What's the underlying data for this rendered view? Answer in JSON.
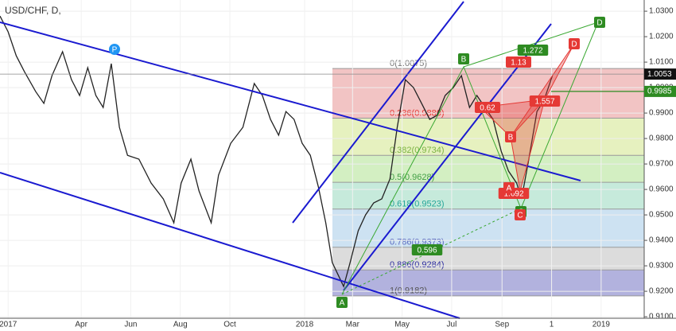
{
  "chart_data": {
    "type": "line",
    "title": "USD/CHF, D,",
    "x": [
      -10,
      0,
      10,
      20,
      34,
      44,
      54,
      67,
      78,
      88,
      98,
      108,
      117,
      127,
      137,
      147,
      161,
      176,
      191,
      204,
      213,
      225,
      235,
      250,
      259,
      274,
      289,
      303,
      313,
      323,
      333,
      342,
      352,
      362,
      372,
      382,
      391,
      399,
      406,
      413,
      421,
      431,
      440,
      450,
      460,
      470,
      479,
      489,
      499,
      509,
      519,
      528,
      538,
      548,
      558,
      568,
      577,
      587,
      597,
      607,
      616,
      626,
      632,
      641,
      651,
      660,
      670
    ],
    "series": [
      {
        "name": "USD/CHF",
        "color": "#222222",
        "values": [
          1.0281,
          1.0219,
          1.0125,
          1.0063,
          0.9984,
          0.9938,
          1.0047,
          1.0141,
          1.0031,
          0.9969,
          1.0078,
          0.9969,
          0.9922,
          1.0094,
          0.9844,
          0.9734,
          0.9719,
          0.9625,
          0.9563,
          0.9469,
          0.9625,
          0.9719,
          0.9594,
          0.9469,
          0.9656,
          0.9781,
          0.9844,
          1.0016,
          0.9969,
          0.9875,
          0.9813,
          0.9906,
          0.9875,
          0.9781,
          0.9734,
          0.9609,
          0.9469,
          0.9313,
          0.9266,
          0.9219,
          0.9313,
          0.9438,
          0.95,
          0.9547,
          0.9563,
          0.9641,
          0.9844,
          1.0031,
          1.0,
          0.9938,
          0.9875,
          0.9891,
          0.9969,
          1.0,
          1.0047,
          0.9922,
          0.9969,
          0.9922,
          0.9875,
          0.975,
          0.9672,
          0.9625,
          0.9563,
          0.9719,
          0.9906,
          0.9953,
          1.0047
        ]
      }
    ],
    "xlim": [
      -10,
      783
    ],
    "xticks": [
      {
        "value": 0,
        "label": "2017"
      },
      {
        "value": 90,
        "label": "Apr"
      },
      {
        "value": 151,
        "label": "Jun"
      },
      {
        "value": 212,
        "label": "Aug"
      },
      {
        "value": 273,
        "label": "Oct"
      },
      {
        "value": 365,
        "label": "2018"
      },
      {
        "value": 424,
        "label": "Mar"
      },
      {
        "value": 485,
        "label": "May"
      },
      {
        "value": 546,
        "label": "Jul"
      },
      {
        "value": 608,
        "label": "Sep"
      },
      {
        "value": 669,
        "label": "1"
      },
      {
        "value": 730,
        "label": "2019"
      }
    ],
    "ylim": [
      0.9094,
      1.0344
    ],
    "yticks": [
      {
        "value": 1.03,
        "label": "1.0300"
      },
      {
        "value": 1.02,
        "label": "1.0200"
      },
      {
        "value": 1.01,
        "label": "1.0100"
      },
      {
        "value": 1.0,
        "label": "1.0000"
      },
      {
        "value": 0.99,
        "label": "0.9900"
      },
      {
        "value": 0.98,
        "label": "0.9800"
      },
      {
        "value": 0.97,
        "label": "0.9700"
      },
      {
        "value": 0.96,
        "label": "0.9600"
      },
      {
        "value": 0.95,
        "label": "0.9500"
      },
      {
        "value": 0.94,
        "label": "0.9400"
      },
      {
        "value": 0.93,
        "label": "0.9300"
      },
      {
        "value": 0.92,
        "label": "0.9200"
      },
      {
        "value": 0.91,
        "label": "0.9100"
      }
    ],
    "fib_levels": [
      {
        "label": "0(1.0075)",
        "price": 1.0075,
        "color": "#f2c4c4"
      },
      {
        "label": "0.236(0.9880)",
        "price": 0.988,
        "color": "#e6f1bf"
      },
      {
        "label": "0.382(0.9734)",
        "price": 0.9734,
        "color": "#d3efc2"
      },
      {
        "label": "0.5(0.9628)",
        "price": 0.9628,
        "color": "#c6eadb"
      },
      {
        "label": "0.618(0.9523)",
        "price": 0.9523,
        "color": "#cde2f2"
      },
      {
        "label": "0.786(0.9373)",
        "price": 0.9373,
        "color": "#dcdcdc"
      },
      {
        "label": "0.886(0.9284)",
        "price": 0.9284,
        "color": "#b2b2de"
      },
      {
        "label": "1(0.9182)",
        "price": 0.9182,
        "color": "#b2b2de"
      }
    ],
    "price_tags": [
      {
        "value": 1.0053,
        "label": "1.0053",
        "color": "#111111"
      },
      {
        "value": 0.9985,
        "label": "0.9985",
        "color": "#2e8b22"
      }
    ],
    "annotations": [
      "P",
      "A",
      "B",
      "C",
      "D",
      "1.272",
      "0.596",
      "1.13",
      "0.62",
      "1.557",
      "1.692",
      "B",
      "A",
      "C",
      "D"
    ]
  }
}
